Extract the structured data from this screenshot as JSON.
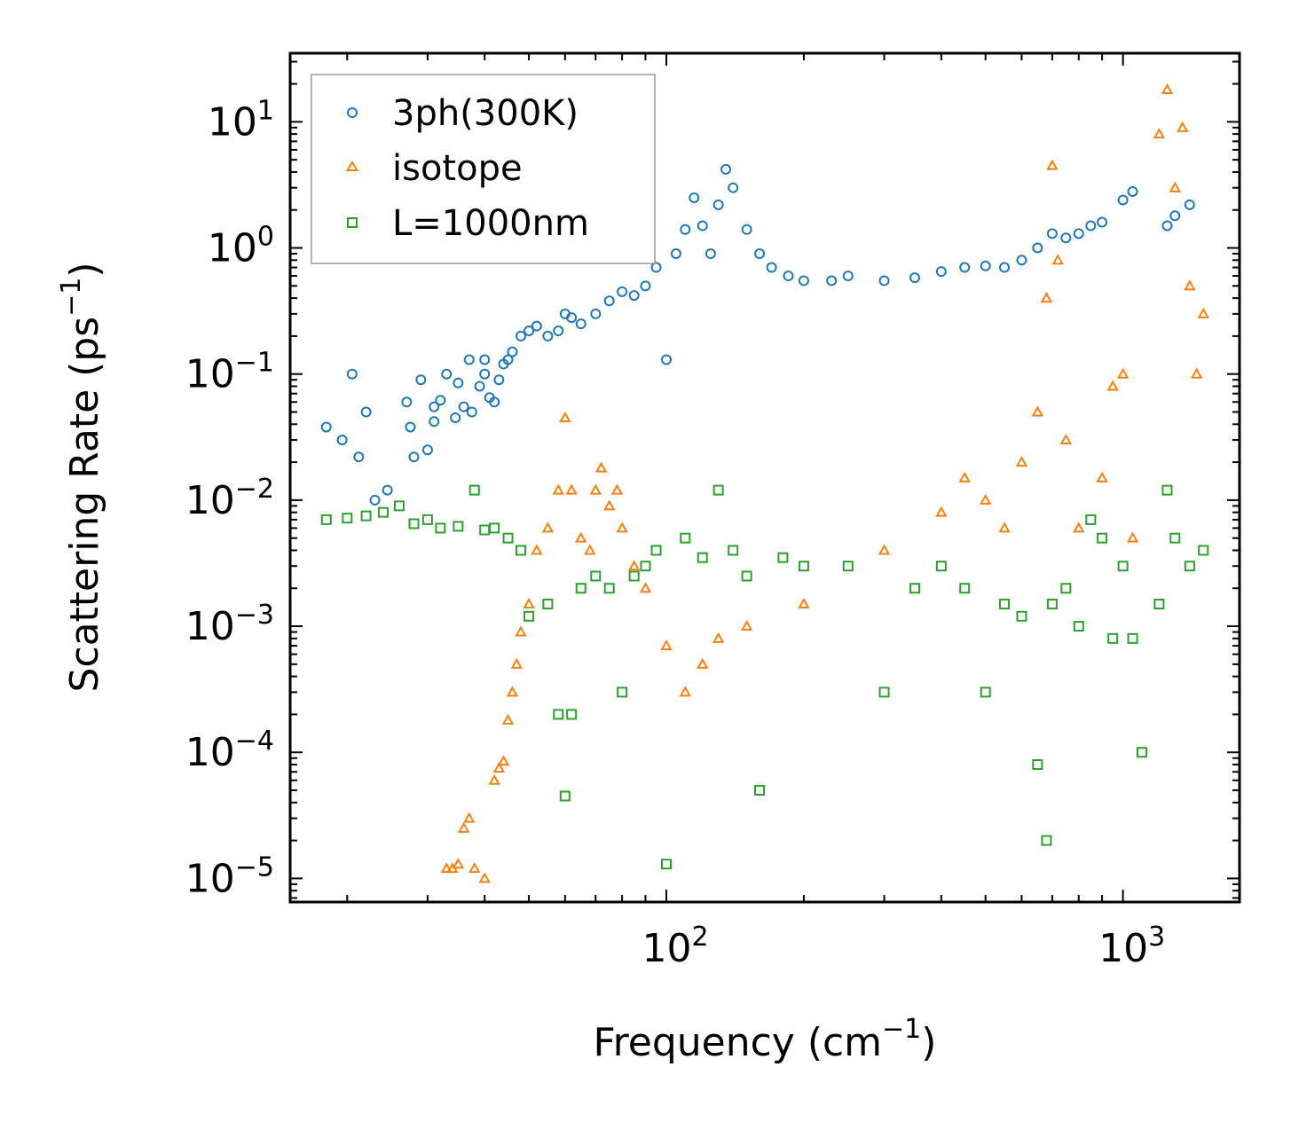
{
  "chart_data": {
    "type": "scatter",
    "xscale": "log",
    "yscale": "log",
    "xlim": [
      15,
      1800
    ],
    "ylim": [
      6.5e-06,
      35
    ],
    "xlabel": "Frequency (cm",
    "xlabel_sup": "−1",
    "xlabel_close": ")",
    "ylabel": "Scattering Rate (ps",
    "ylabel_sup": "−1",
    "ylabel_close": ")",
    "x_ticks": [
      {
        "value": 100,
        "base": "10",
        "exp": "2"
      },
      {
        "value": 1000,
        "base": "10",
        "exp": "3"
      }
    ],
    "y_ticks": [
      {
        "value": 10,
        "base": "10",
        "exp": "1"
      },
      {
        "value": 1,
        "base": "10",
        "exp": "0"
      },
      {
        "value": 0.1,
        "base": "10",
        "exp": "−1"
      },
      {
        "value": 0.01,
        "base": "10",
        "exp": "−2"
      },
      {
        "value": 0.001,
        "base": "10",
        "exp": "−3"
      },
      {
        "value": 0.0001,
        "base": "10",
        "exp": "−4"
      },
      {
        "value": 1e-05,
        "base": "10",
        "exp": "−5"
      }
    ],
    "legend_position": "top-left",
    "series": [
      {
        "name": "3ph(300K)",
        "marker": "circle",
        "color": "#1f77b4",
        "points": [
          [
            18,
            0.038
          ],
          [
            19.5,
            0.03
          ],
          [
            20.5,
            0.1
          ],
          [
            21.2,
            0.022
          ],
          [
            22,
            0.05
          ],
          [
            23,
            0.01
          ],
          [
            24.5,
            0.012
          ],
          [
            27,
            0.06
          ],
          [
            27.5,
            0.038
          ],
          [
            28,
            0.022
          ],
          [
            29,
            0.09
          ],
          [
            30,
            0.025
          ],
          [
            31,
            0.042
          ],
          [
            31,
            0.055
          ],
          [
            32,
            0.062
          ],
          [
            33,
            0.1
          ],
          [
            34.5,
            0.045
          ],
          [
            35,
            0.085
          ],
          [
            36,
            0.055
          ],
          [
            37,
            0.13
          ],
          [
            37.5,
            0.05
          ],
          [
            39,
            0.08
          ],
          [
            40,
            0.1
          ],
          [
            40,
            0.13
          ],
          [
            41,
            0.065
          ],
          [
            42,
            0.06
          ],
          [
            43,
            0.09
          ],
          [
            44,
            0.12
          ],
          [
            45,
            0.13
          ],
          [
            46,
            0.15
          ],
          [
            48,
            0.2
          ],
          [
            50,
            0.22
          ],
          [
            52,
            0.24
          ],
          [
            55,
            0.2
          ],
          [
            58,
            0.22
          ],
          [
            60,
            0.3
          ],
          [
            62,
            0.28
          ],
          [
            65,
            0.25
          ],
          [
            70,
            0.3
          ],
          [
            75,
            0.38
          ],
          [
            80,
            0.45
          ],
          [
            85,
            0.42
          ],
          [
            90,
            0.5
          ],
          [
            95,
            0.7
          ],
          [
            100,
            0.13
          ],
          [
            105,
            0.9
          ],
          [
            110,
            1.4
          ],
          [
            115,
            2.5
          ],
          [
            120,
            1.5
          ],
          [
            125,
            0.9
          ],
          [
            130,
            2.2
          ],
          [
            135,
            4.2
          ],
          [
            140,
            3.0
          ],
          [
            150,
            1.4
          ],
          [
            160,
            0.9
          ],
          [
            170,
            0.7
          ],
          [
            185,
            0.6
          ],
          [
            200,
            0.55
          ],
          [
            230,
            0.55
          ],
          [
            250,
            0.6
          ],
          [
            300,
            0.55
          ],
          [
            350,
            0.58
          ],
          [
            400,
            0.65
          ],
          [
            450,
            0.7
          ],
          [
            500,
            0.72
          ],
          [
            550,
            0.7
          ],
          [
            600,
            0.8
          ],
          [
            650,
            1.0
          ],
          [
            700,
            1.3
          ],
          [
            750,
            1.2
          ],
          [
            800,
            1.3
          ],
          [
            850,
            1.5
          ],
          [
            900,
            1.6
          ],
          [
            1000,
            2.4
          ],
          [
            1050,
            2.8
          ],
          [
            1250,
            1.5
          ],
          [
            1300,
            1.8
          ],
          [
            1400,
            2.2
          ]
        ]
      },
      {
        "name": "isotope",
        "marker": "triangle",
        "color": "#ff7f0e",
        "points": [
          [
            33,
            1.2e-05
          ],
          [
            34,
            1.2e-05
          ],
          [
            35,
            1.3e-05
          ],
          [
            36,
            2.5e-05
          ],
          [
            37,
            3e-05
          ],
          [
            38,
            1.2e-05
          ],
          [
            40,
            1e-05
          ],
          [
            42,
            6e-05
          ],
          [
            43,
            7.5e-05
          ],
          [
            44,
            8.5e-05
          ],
          [
            45,
            0.00018
          ],
          [
            46,
            0.0003
          ],
          [
            47,
            0.0005
          ],
          [
            48,
            0.0009
          ],
          [
            50,
            0.0015
          ],
          [
            52,
            0.004
          ],
          [
            55,
            0.006
          ],
          [
            58,
            0.012
          ],
          [
            60,
            0.045
          ],
          [
            62,
            0.012
          ],
          [
            65,
            0.005
          ],
          [
            68,
            0.004
          ],
          [
            70,
            0.012
          ],
          [
            72,
            0.018
          ],
          [
            75,
            0.009
          ],
          [
            78,
            0.012
          ],
          [
            80,
            0.006
          ],
          [
            85,
            0.003
          ],
          [
            90,
            0.002
          ],
          [
            100,
            0.0007
          ],
          [
            110,
            0.0003
          ],
          [
            120,
            0.0005
          ],
          [
            130,
            0.0008
          ],
          [
            150,
            0.001
          ],
          [
            200,
            0.0015
          ],
          [
            300,
            0.004
          ],
          [
            400,
            0.008
          ],
          [
            450,
            0.015
          ],
          [
            500,
            0.01
          ],
          [
            550,
            0.006
          ],
          [
            600,
            0.02
          ],
          [
            650,
            0.05
          ],
          [
            680,
            0.4
          ],
          [
            700,
            4.5
          ],
          [
            720,
            0.8
          ],
          [
            750,
            0.03
          ],
          [
            800,
            0.006
          ],
          [
            900,
            0.015
          ],
          [
            950,
            0.08
          ],
          [
            1000,
            0.1
          ],
          [
            1050,
            0.005
          ],
          [
            1200,
            8
          ],
          [
            1250,
            18
          ],
          [
            1300,
            3
          ],
          [
            1350,
            9
          ],
          [
            1400,
            0.5
          ],
          [
            1450,
            0.1
          ],
          [
            1500,
            0.3
          ]
        ]
      },
      {
        "name": "L=1000nm",
        "marker": "square",
        "color": "#2ca02c",
        "points": [
          [
            18,
            0.007
          ],
          [
            20,
            0.0072
          ],
          [
            22,
            0.0075
          ],
          [
            24,
            0.008
          ],
          [
            26,
            0.009
          ],
          [
            28,
            0.0065
          ],
          [
            30,
            0.007
          ],
          [
            32,
            0.006
          ],
          [
            35,
            0.0062
          ],
          [
            38,
            0.012
          ],
          [
            40,
            0.0058
          ],
          [
            42,
            0.006
          ],
          [
            45,
            0.005
          ],
          [
            48,
            0.004
          ],
          [
            50,
            0.0012
          ],
          [
            55,
            0.0015
          ],
          [
            58,
            0.0002
          ],
          [
            60,
            4.5e-05
          ],
          [
            62,
            0.0002
          ],
          [
            65,
            0.002
          ],
          [
            70,
            0.0025
          ],
          [
            75,
            0.002
          ],
          [
            80,
            0.0003
          ],
          [
            85,
            0.0025
          ],
          [
            90,
            0.003
          ],
          [
            95,
            0.004
          ],
          [
            100,
            1.3e-05
          ],
          [
            110,
            0.005
          ],
          [
            120,
            0.0035
          ],
          [
            130,
            0.012
          ],
          [
            140,
            0.004
          ],
          [
            150,
            0.0025
          ],
          [
            160,
            5e-05
          ],
          [
            180,
            0.0035
          ],
          [
            200,
            0.003
          ],
          [
            250,
            0.003
          ],
          [
            300,
            0.0003
          ],
          [
            350,
            0.002
          ],
          [
            400,
            0.003
          ],
          [
            450,
            0.002
          ],
          [
            500,
            0.0003
          ],
          [
            550,
            0.0015
          ],
          [
            600,
            0.0012
          ],
          [
            650,
            8e-05
          ],
          [
            680,
            2e-05
          ],
          [
            700,
            0.0015
          ],
          [
            750,
            0.002
          ],
          [
            800,
            0.001
          ],
          [
            850,
            0.007
          ],
          [
            900,
            0.005
          ],
          [
            950,
            0.0008
          ],
          [
            1000,
            0.003
          ],
          [
            1050,
            0.0008
          ],
          [
            1100,
            0.0001
          ],
          [
            1200,
            0.0015
          ],
          [
            1250,
            0.012
          ],
          [
            1300,
            0.005
          ],
          [
            1400,
            0.003
          ],
          [
            1500,
            0.004
          ]
        ]
      }
    ]
  }
}
